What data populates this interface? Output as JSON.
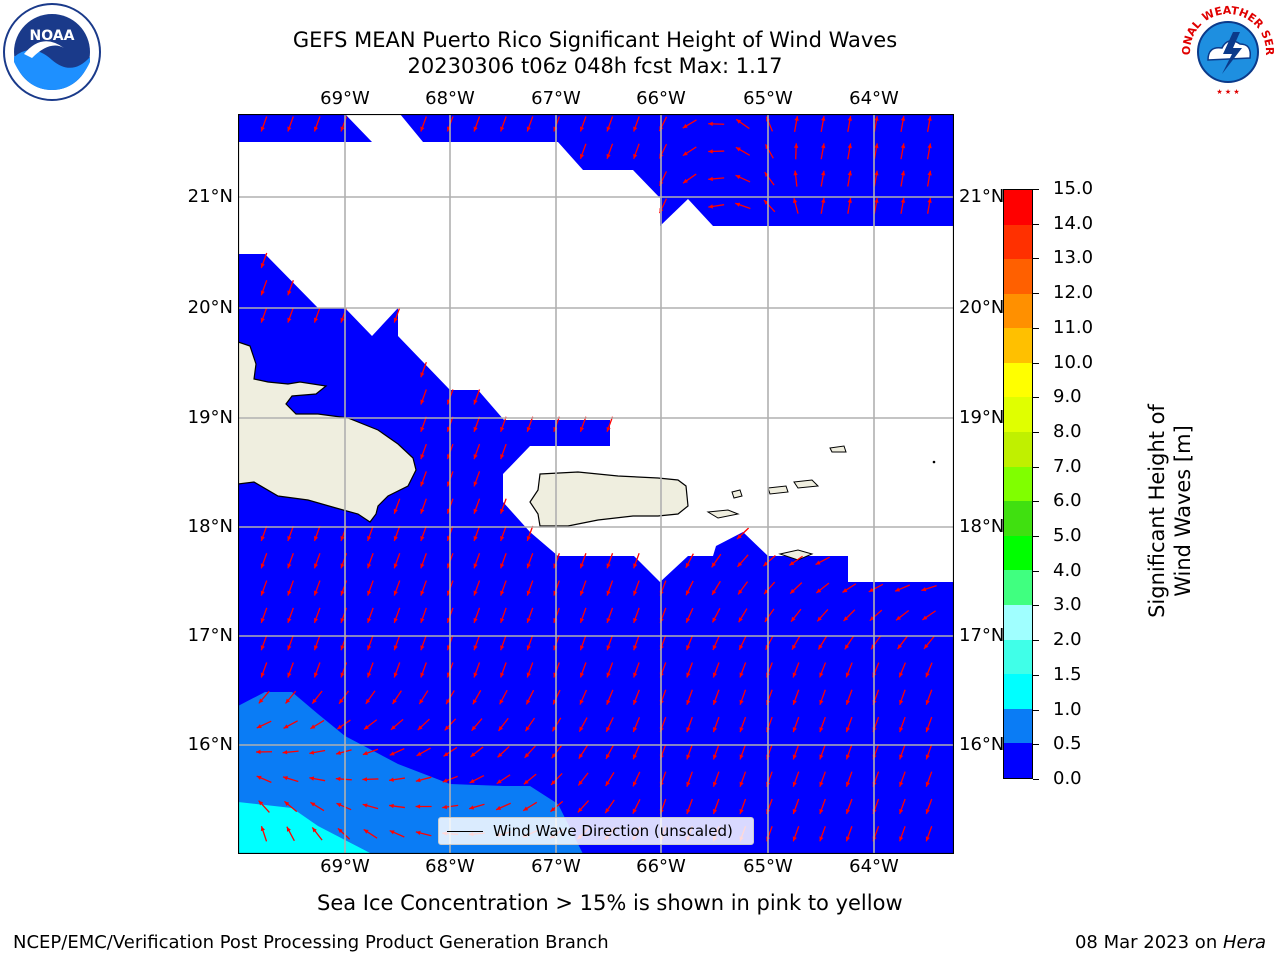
{
  "header": {
    "title_line1": "GEFS MEAN Puerto Rico Significant Height of Wind Waves",
    "title_line2": "20230306 t06z 048h fcst   Max: 1.17"
  },
  "logos": {
    "noaa": "NOAA",
    "nws_ring": "NATIONAL WEATHER SERVICE"
  },
  "map": {
    "lon_labels": [
      "69°W",
      "68°W",
      "67°W",
      "66°W",
      "65°W",
      "64°W"
    ],
    "lat_labels": [
      "21°N",
      "20°N",
      "19°N",
      "18°N",
      "17°N",
      "16°N"
    ],
    "legend_label": "Wind Wave Direction (unscaled)",
    "arrow_color": "#ff0000",
    "grid_color": "#b0b0b0",
    "land_color": "#efeedf",
    "sea_ice_note": "Sea Ice Concentration > 15% is shown in pink to yellow"
  },
  "colorbar": {
    "label": "Significant Height of Wind Waves [m]",
    "ticks": [
      "0.0",
      "0.5",
      "1.0",
      "1.5",
      "2.0",
      "3.0",
      "4.0",
      "5.0",
      "6.0",
      "7.0",
      "8.0",
      "9.0",
      "10.0",
      "11.0",
      "12.0",
      "13.0",
      "14.0",
      "15.0"
    ],
    "colors": [
      "#0000ff",
      "#0a7cf5",
      "#00ffff",
      "#40ffe8",
      "#a0ffff",
      "#40ff80",
      "#00ff00",
      "#40e010",
      "#80ff00",
      "#c0f000",
      "#e0ff00",
      "#ffff00",
      "#ffc000",
      "#ff9000",
      "#ff6000",
      "#ff3000",
      "#ff0000"
    ]
  },
  "footer": {
    "left": "NCEP/EMC/Verification Post Processing Product Generation Branch",
    "right_date": "08 Mar 2023 on ",
    "right_host": "Hera"
  }
}
